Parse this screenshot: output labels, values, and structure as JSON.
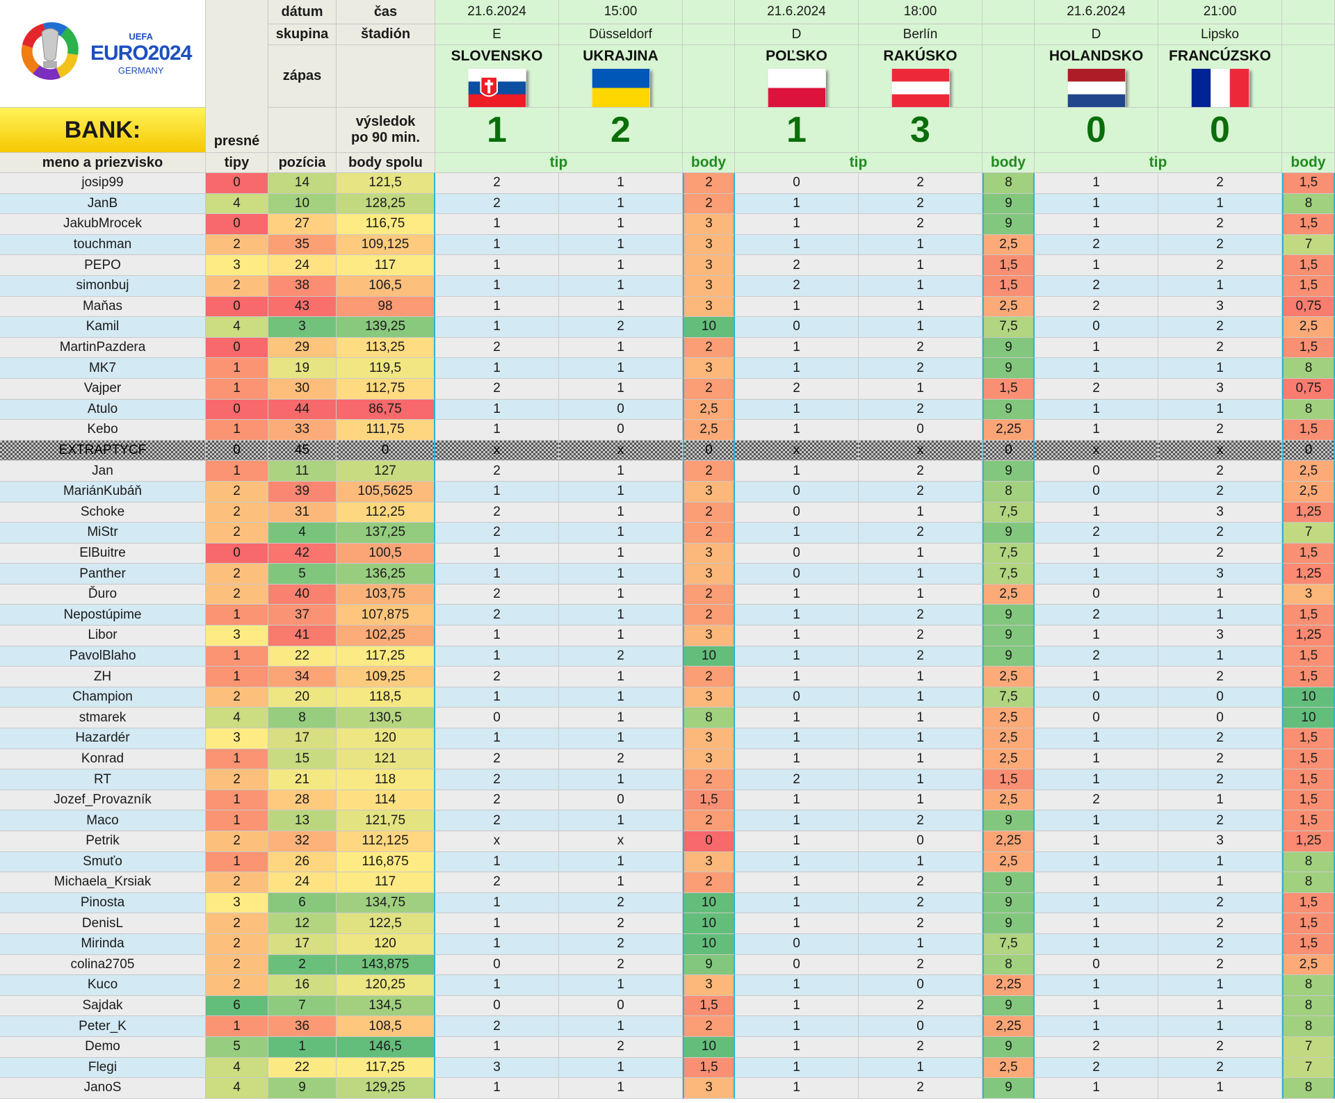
{
  "header": {
    "bank_label": "BANK:",
    "logo": {
      "uefa": "UEFA",
      "euro": "EURO2024",
      "germany": "GERMANY"
    },
    "labels": {
      "datum": "dátum",
      "cas": "čas",
      "skupina": "skupina",
      "stadion": "štadión",
      "zapas": "zápas",
      "vysledok": "výsledok",
      "po90": "po 90 min.",
      "presne": "presné",
      "tipy": "tipy",
      "meno": "meno a priezvisko",
      "pozicia": "pozícia",
      "body_spolu": "body spolu",
      "tip": "tip",
      "body": "body"
    }
  },
  "matches": [
    {
      "date": "21.6.2024",
      "time": "15:00",
      "group": "E",
      "stadium": "Düsseldorf",
      "home": "SLOVENSKO",
      "away": "UKRAJINA",
      "home_goals": "1",
      "away_goals": "2"
    },
    {
      "date": "21.6.2024",
      "time": "18:00",
      "group": "D",
      "stadium": "Berlín",
      "home": "POĽSKO",
      "away": "RAKÚSKO",
      "home_goals": "1",
      "away_goals": "3"
    },
    {
      "date": "21.6.2024",
      "time": "21:00",
      "group": "D",
      "stadium": "Lipsko",
      "home": "HOLANDSKO",
      "away": "FRANCÚZSKO",
      "home_goals": "0",
      "away_goals": "0"
    }
  ],
  "rows": [
    [
      "josip99",
      "0",
      "14",
      "121,5",
      "2",
      "1",
      "2",
      "0",
      "2",
      "8",
      "1",
      "2",
      "1,5"
    ],
    [
      "JanB",
      "4",
      "10",
      "128,25",
      "2",
      "1",
      "2",
      "1",
      "2",
      "9",
      "1",
      "1",
      "8"
    ],
    [
      "JakubMrocek",
      "0",
      "27",
      "116,75",
      "1",
      "1",
      "3",
      "1",
      "2",
      "9",
      "1",
      "2",
      "1,5"
    ],
    [
      "touchman",
      "2",
      "35",
      "109,125",
      "1",
      "1",
      "3",
      "1",
      "1",
      "2,5",
      "2",
      "2",
      "7"
    ],
    [
      "PEPO",
      "3",
      "24",
      "117",
      "1",
      "1",
      "3",
      "2",
      "1",
      "1,5",
      "1",
      "2",
      "1,5"
    ],
    [
      "simonbuj",
      "2",
      "38",
      "106,5",
      "1",
      "1",
      "3",
      "2",
      "1",
      "1,5",
      "2",
      "1",
      "1,5"
    ],
    [
      "Maňas",
      "0",
      "43",
      "98",
      "1",
      "1",
      "3",
      "1",
      "1",
      "2,5",
      "2",
      "3",
      "0,75"
    ],
    [
      "Kamil",
      "4",
      "3",
      "139,25",
      "1",
      "2",
      "10",
      "0",
      "1",
      "7,5",
      "0",
      "2",
      "2,5"
    ],
    [
      "MartinPazdera",
      "0",
      "29",
      "113,25",
      "2",
      "1",
      "2",
      "1",
      "2",
      "9",
      "1",
      "2",
      "1,5"
    ],
    [
      "MK7",
      "1",
      "19",
      "119,5",
      "1",
      "1",
      "3",
      "1",
      "2",
      "9",
      "1",
      "1",
      "8"
    ],
    [
      "Vajper",
      "1",
      "30",
      "112,75",
      "2",
      "1",
      "2",
      "2",
      "1",
      "1,5",
      "2",
      "3",
      "0,75"
    ],
    [
      "Atulo",
      "0",
      "44",
      "86,75",
      "1",
      "0",
      "2,5",
      "1",
      "2",
      "9",
      "1",
      "1",
      "8"
    ],
    [
      "Kebo",
      "1",
      "33",
      "111,75",
      "1",
      "0",
      "2,5",
      "1",
      "0",
      "2,25",
      "1",
      "2",
      "1,5"
    ],
    [
      "EXTRAPTYCF",
      "0",
      "45",
      "0",
      "x",
      "x",
      "0",
      "x",
      "x",
      "0",
      "x",
      "x",
      "0"
    ],
    [
      "Jan",
      "1",
      "11",
      "127",
      "2",
      "1",
      "2",
      "1",
      "2",
      "9",
      "0",
      "2",
      "2,5"
    ],
    [
      "MariánKubáň",
      "2",
      "39",
      "105,5625",
      "1",
      "1",
      "3",
      "0",
      "2",
      "8",
      "0",
      "2",
      "2,5"
    ],
    [
      "Schoke",
      "2",
      "31",
      "112,25",
      "2",
      "1",
      "2",
      "0",
      "1",
      "7,5",
      "1",
      "3",
      "1,25"
    ],
    [
      "MiStr",
      "2",
      "4",
      "137,25",
      "2",
      "1",
      "2",
      "1",
      "2",
      "9",
      "2",
      "2",
      "7"
    ],
    [
      "ElBuitre",
      "0",
      "42",
      "100,5",
      "1",
      "1",
      "3",
      "0",
      "1",
      "7,5",
      "1",
      "2",
      "1,5"
    ],
    [
      "Panther",
      "2",
      "5",
      "136,25",
      "1",
      "1",
      "3",
      "0",
      "1",
      "7,5",
      "1",
      "3",
      "1,25"
    ],
    [
      "Ďuro",
      "2",
      "40",
      "103,75",
      "2",
      "1",
      "2",
      "1",
      "1",
      "2,5",
      "0",
      "1",
      "3"
    ],
    [
      "Nepostúpime",
      "1",
      "37",
      "107,875",
      "2",
      "1",
      "2",
      "1",
      "2",
      "9",
      "2",
      "1",
      "1,5"
    ],
    [
      "Libor",
      "3",
      "41",
      "102,25",
      "1",
      "1",
      "3",
      "1",
      "2",
      "9",
      "1",
      "3",
      "1,25"
    ],
    [
      "PavolBlaho",
      "1",
      "22",
      "117,25",
      "1",
      "2",
      "10",
      "1",
      "2",
      "9",
      "2",
      "1",
      "1,5"
    ],
    [
      "ZH",
      "1",
      "34",
      "109,25",
      "2",
      "1",
      "2",
      "1",
      "1",
      "2,5",
      "1",
      "2",
      "1,5"
    ],
    [
      "Champion",
      "2",
      "20",
      "118,5",
      "1",
      "1",
      "3",
      "0",
      "1",
      "7,5",
      "0",
      "0",
      "10"
    ],
    [
      "stmarek",
      "4",
      "8",
      "130,5",
      "0",
      "1",
      "8",
      "1",
      "1",
      "2,5",
      "0",
      "0",
      "10"
    ],
    [
      "Hazardér",
      "3",
      "17",
      "120",
      "1",
      "1",
      "3",
      "1",
      "1",
      "2,5",
      "1",
      "2",
      "1,5"
    ],
    [
      "Konrad",
      "1",
      "15",
      "121",
      "2",
      "2",
      "3",
      "1",
      "1",
      "2,5",
      "1",
      "2",
      "1,5"
    ],
    [
      "RT",
      "2",
      "21",
      "118",
      "2",
      "1",
      "2",
      "2",
      "1",
      "1,5",
      "1",
      "2",
      "1,5"
    ],
    [
      "Jozef_Provazník",
      "1",
      "28",
      "114",
      "2",
      "0",
      "1,5",
      "1",
      "1",
      "2,5",
      "2",
      "1",
      "1,5"
    ],
    [
      "Maco",
      "1",
      "13",
      "121,75",
      "2",
      "1",
      "2",
      "1",
      "2",
      "9",
      "1",
      "2",
      "1,5"
    ],
    [
      "Petrik",
      "2",
      "32",
      "112,125",
      "x",
      "x",
      "0",
      "1",
      "0",
      "2,25",
      "1",
      "3",
      "1,25"
    ],
    [
      "Smuťo",
      "1",
      "26",
      "116,875",
      "1",
      "1",
      "3",
      "1",
      "1",
      "2,5",
      "1",
      "1",
      "8"
    ],
    [
      "Michaela_Krsiak",
      "2",
      "24",
      "117",
      "2",
      "1",
      "2",
      "1",
      "2",
      "9",
      "1",
      "1",
      "8"
    ],
    [
      "Pinosta",
      "3",
      "6",
      "134,75",
      "1",
      "2",
      "10",
      "1",
      "2",
      "9",
      "1",
      "2",
      "1,5"
    ],
    [
      "DenisL",
      "2",
      "12",
      "122,5",
      "1",
      "2",
      "10",
      "1",
      "2",
      "9",
      "1",
      "2",
      "1,5"
    ],
    [
      "Mirinda",
      "2",
      "17",
      "120",
      "1",
      "2",
      "10",
      "0",
      "1",
      "7,5",
      "1",
      "2",
      "1,5"
    ],
    [
      "colina2705",
      "2",
      "2",
      "143,875",
      "0",
      "2",
      "9",
      "0",
      "2",
      "8",
      "0",
      "2",
      "2,5"
    ],
    [
      "Kuco",
      "2",
      "16",
      "120,25",
      "1",
      "1",
      "3",
      "1",
      "0",
      "2,25",
      "1",
      "1",
      "8"
    ],
    [
      "Sajdak",
      "6",
      "7",
      "134,5",
      "0",
      "0",
      "1,5",
      "1",
      "2",
      "9",
      "1",
      "1",
      "8"
    ],
    [
      "Peter_K",
      "1",
      "36",
      "108,5",
      "2",
      "1",
      "2",
      "1",
      "0",
      "2,25",
      "1",
      "1",
      "8"
    ],
    [
      "Demo",
      "5",
      "1",
      "146,5",
      "1",
      "2",
      "10",
      "1",
      "2",
      "9",
      "2",
      "2",
      "7"
    ],
    [
      "Flegi",
      "4",
      "22",
      "117,25",
      "3",
      "1",
      "1,5",
      "1",
      "1",
      "2,5",
      "2",
      "2",
      "7"
    ],
    [
      "JanoS",
      "4",
      "9",
      "129,25",
      "1",
      "1",
      "3",
      "1",
      "2",
      "9",
      "1",
      "1",
      "8"
    ]
  ],
  "colors": {
    "green": "#63be7b",
    "yellow": "#ffeb84",
    "red": "#f8696b",
    "header_green": "#d7f5d2",
    "header_gray": "#ebebe1",
    "cyan_border": "#28b4d8",
    "row_gray": "#ececec",
    "row_blue": "#d3e9f3"
  }
}
